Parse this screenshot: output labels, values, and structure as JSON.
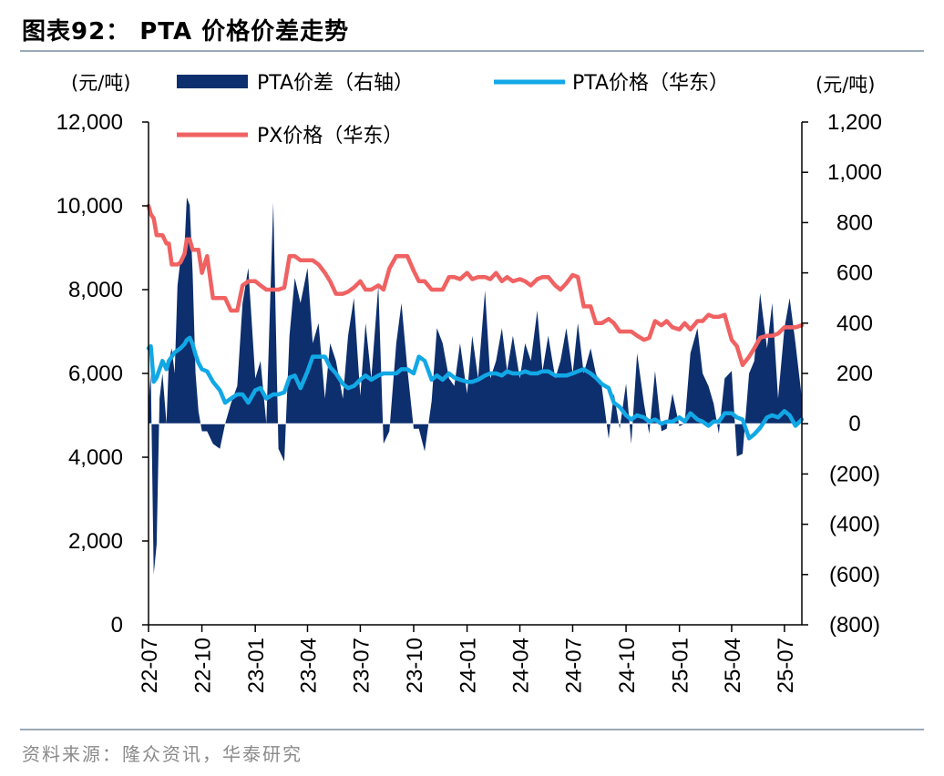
{
  "figure": {
    "title": "图表92： PTA 价格价差走势",
    "source": "资料来源：隆众资讯，华泰研究"
  },
  "chart_data": {
    "type": "line+area",
    "left_unit": "(元/吨)",
    "right_unit": "(元/吨)",
    "left_axis": {
      "min": 0,
      "max": 12000,
      "ticks": [
        "0",
        "2,000",
        "4,000",
        "6,000",
        "8,000",
        "10,000",
        "12,000"
      ]
    },
    "right_axis": {
      "min": -800,
      "max": 1200,
      "ticks": [
        "(800)",
        "(600)",
        "(400)",
        "(200)",
        "0",
        "200",
        "400",
        "600",
        "800",
        "1,000",
        "1,200"
      ]
    },
    "x_axis": {
      "start": "2022-07-01",
      "end": "2025-07-31",
      "ticks": [
        "22-07",
        "22-10",
        "23-01",
        "23-04",
        "23-07",
        "23-10",
        "24-01",
        "24-04",
        "24-07",
        "24-10",
        "25-01",
        "25-04",
        "25-07"
      ],
      "tick_dates": [
        "2022-07-01",
        "2022-10-01",
        "2023-01-01",
        "2023-04-01",
        "2023-07-01",
        "2023-10-01",
        "2024-01-01",
        "2024-04-01",
        "2024-07-01",
        "2024-10-01",
        "2025-01-01",
        "2025-04-01",
        "2025-07-01"
      ]
    },
    "legend": {
      "placement": "top"
    },
    "series": [
      {
        "name": "PTA价差（右轴）",
        "type": "area",
        "axis": "right",
        "color": "#0d2f6e",
        "dates": [
          "2022-07-01",
          "2022-07-05",
          "2022-07-10",
          "2022-07-15",
          "2022-07-20",
          "2022-07-25",
          "2022-08-01",
          "2022-08-05",
          "2022-08-10",
          "2022-08-15",
          "2022-08-20",
          "2022-08-25",
          "2022-09-01",
          "2022-09-05",
          "2022-09-10",
          "2022-09-15",
          "2022-09-20",
          "2022-09-25",
          "2022-10-01",
          "2022-10-10",
          "2022-10-20",
          "2022-11-01",
          "2022-11-10",
          "2022-11-20",
          "2022-12-01",
          "2022-12-10",
          "2022-12-20",
          "2023-01-01",
          "2023-01-10",
          "2023-01-20",
          "2023-02-01",
          "2023-02-10",
          "2023-02-20",
          "2023-03-01",
          "2023-03-10",
          "2023-03-20",
          "2023-04-01",
          "2023-04-10",
          "2023-04-20",
          "2023-05-01",
          "2023-05-10",
          "2023-05-20",
          "2023-06-01",
          "2023-06-10",
          "2023-06-20",
          "2023-07-01",
          "2023-07-10",
          "2023-07-20",
          "2023-08-01",
          "2023-08-10",
          "2023-08-20",
          "2023-09-01",
          "2023-09-10",
          "2023-09-20",
          "2023-10-01",
          "2023-10-10",
          "2023-10-20",
          "2023-11-01",
          "2023-11-10",
          "2023-11-20",
          "2023-12-01",
          "2023-12-10",
          "2023-12-20",
          "2024-01-01",
          "2024-01-10",
          "2024-01-20",
          "2024-02-01",
          "2024-02-10",
          "2024-02-20",
          "2024-03-01",
          "2024-03-10",
          "2024-03-20",
          "2024-04-01",
          "2024-04-10",
          "2024-04-20",
          "2024-05-01",
          "2024-05-10",
          "2024-05-20",
          "2024-06-01",
          "2024-06-10",
          "2024-06-20",
          "2024-07-01",
          "2024-07-10",
          "2024-07-20",
          "2024-08-01",
          "2024-08-10",
          "2024-08-20",
          "2024-09-01",
          "2024-09-10",
          "2024-09-20",
          "2024-10-01",
          "2024-10-10",
          "2024-10-20",
          "2024-11-01",
          "2024-11-10",
          "2024-11-20",
          "2024-12-01",
          "2024-12-10",
          "2024-12-20",
          "2025-01-01",
          "2025-01-10",
          "2025-01-20",
          "2025-02-01",
          "2025-02-10",
          "2025-02-20",
          "2025-03-01",
          "2025-03-10",
          "2025-03-20",
          "2025-04-01",
          "2025-04-10",
          "2025-04-20",
          "2025-05-01",
          "2025-05-10",
          "2025-05-20",
          "2025-06-01",
          "2025-06-10",
          "2025-06-20",
          "2025-07-01",
          "2025-07-10",
          "2025-07-20",
          "2025-07-31"
        ],
        "values": [
          80,
          200,
          -600,
          -480,
          100,
          200,
          0,
          250,
          300,
          200,
          550,
          650,
          700,
          900,
          870,
          600,
          200,
          50,
          -30,
          -30,
          -80,
          -100,
          0,
          80,
          150,
          480,
          620,
          180,
          250,
          0,
          880,
          -100,
          -150,
          350,
          580,
          480,
          620,
          320,
          400,
          100,
          320,
          250,
          100,
          350,
          500,
          110,
          400,
          180,
          550,
          -80,
          -30,
          320,
          480,
          220,
          -20,
          -20,
          -110,
          90,
          380,
          320,
          180,
          150,
          320,
          120,
          350,
          180,
          530,
          180,
          250,
          380,
          210,
          350,
          180,
          320,
          250,
          450,
          210,
          350,
          180,
          250,
          380,
          200,
          400,
          200,
          300,
          200,
          150,
          -60,
          120,
          -20,
          160,
          -80,
          280,
          80,
          -40,
          210,
          -30,
          -20,
          120,
          -10,
          0,
          280,
          380,
          200,
          150,
          80,
          -40,
          180,
          210,
          -130,
          -120,
          200,
          250,
          520,
          300,
          480,
          100,
          380,
          500,
          320,
          100
        ]
      },
      {
        "name": "PTA价格（华东）",
        "type": "line",
        "axis": "left",
        "color": "#12a8e6",
        "dates": [
          "2022-07-01",
          "2022-07-05",
          "2022-07-10",
          "2022-07-15",
          "2022-07-20",
          "2022-07-25",
          "2022-08-01",
          "2022-08-05",
          "2022-08-10",
          "2022-08-15",
          "2022-08-20",
          "2022-08-25",
          "2022-09-01",
          "2022-09-05",
          "2022-09-10",
          "2022-09-15",
          "2022-09-20",
          "2022-09-25",
          "2022-10-01",
          "2022-10-10",
          "2022-10-20",
          "2022-11-01",
          "2022-11-10",
          "2022-11-20",
          "2022-12-01",
          "2022-12-10",
          "2022-12-20",
          "2023-01-01",
          "2023-01-10",
          "2023-01-20",
          "2023-02-01",
          "2023-02-10",
          "2023-02-20",
          "2023-03-01",
          "2023-03-10",
          "2023-03-20",
          "2023-04-01",
          "2023-04-10",
          "2023-04-20",
          "2023-05-01",
          "2023-05-10",
          "2023-05-20",
          "2023-06-01",
          "2023-06-10",
          "2023-06-20",
          "2023-07-01",
          "2023-07-10",
          "2023-07-20",
          "2023-08-01",
          "2023-08-10",
          "2023-08-20",
          "2023-09-01",
          "2023-09-10",
          "2023-09-20",
          "2023-10-01",
          "2023-10-10",
          "2023-10-20",
          "2023-11-01",
          "2023-11-10",
          "2023-11-20",
          "2023-12-01",
          "2023-12-10",
          "2023-12-20",
          "2024-01-01",
          "2024-01-10",
          "2024-01-20",
          "2024-02-01",
          "2024-02-10",
          "2024-02-20",
          "2024-03-01",
          "2024-03-10",
          "2024-03-20",
          "2024-04-01",
          "2024-04-10",
          "2024-04-20",
          "2024-05-01",
          "2024-05-10",
          "2024-05-20",
          "2024-06-01",
          "2024-06-10",
          "2024-06-20",
          "2024-07-01",
          "2024-07-10",
          "2024-07-20",
          "2024-08-01",
          "2024-08-10",
          "2024-08-20",
          "2024-09-01",
          "2024-09-10",
          "2024-09-20",
          "2024-10-01",
          "2024-10-10",
          "2024-10-20",
          "2024-11-01",
          "2024-11-10",
          "2024-11-20",
          "2024-12-01",
          "2024-12-10",
          "2024-12-20",
          "2025-01-01",
          "2025-01-10",
          "2025-01-20",
          "2025-02-01",
          "2025-02-10",
          "2025-02-20",
          "2025-03-01",
          "2025-03-10",
          "2025-03-20",
          "2025-04-01",
          "2025-04-10",
          "2025-04-20",
          "2025-05-01",
          "2025-05-10",
          "2025-05-20",
          "2025-06-01",
          "2025-06-10",
          "2025-06-20",
          "2025-07-01",
          "2025-07-10",
          "2025-07-20",
          "2025-07-31"
        ],
        "values": [
          6600,
          6650,
          5800,
          5900,
          6100,
          6300,
          6100,
          6300,
          6400,
          6500,
          6550,
          6600,
          6700,
          6800,
          6850,
          6700,
          6450,
          6250,
          6100,
          6050,
          5800,
          5600,
          5300,
          5400,
          5500,
          5500,
          5300,
          5600,
          5650,
          5400,
          5500,
          5500,
          5550,
          5900,
          5950,
          5650,
          6050,
          6400,
          6400,
          6400,
          6150,
          6000,
          5750,
          5650,
          5700,
          5850,
          5950,
          5850,
          5950,
          6000,
          6000,
          6000,
          6100,
          6100,
          6000,
          6400,
          6300,
          5850,
          5950,
          5850,
          6000,
          5900,
          5850,
          5800,
          5800,
          5850,
          5950,
          6000,
          6000,
          5950,
          6050,
          6000,
          6000,
          6050,
          6000,
          6000,
          6050,
          6050,
          5950,
          5950,
          5950,
          6000,
          6050,
          6100,
          6000,
          5900,
          5750,
          5650,
          5300,
          5200,
          5000,
          4900,
          5000,
          4950,
          4850,
          4900,
          4800,
          4850,
          4850,
          4950,
          4850,
          5050,
          4900,
          4850,
          4750,
          4850,
          4850,
          5050,
          5050,
          4950,
          4900,
          4450,
          4550,
          4700,
          4950,
          5000,
          4950,
          5100,
          5000,
          4750,
          4900
        ]
      },
      {
        "name": "PX价格（华东）",
        "type": "line",
        "axis": "left",
        "color": "#f06262",
        "dates": [
          "2022-07-01",
          "2022-07-05",
          "2022-07-10",
          "2022-07-15",
          "2022-07-20",
          "2022-07-25",
          "2022-08-01",
          "2022-08-05",
          "2022-08-10",
          "2022-08-15",
          "2022-08-20",
          "2022-08-25",
          "2022-09-01",
          "2022-09-05",
          "2022-09-10",
          "2022-09-15",
          "2022-09-20",
          "2022-09-25",
          "2022-10-01",
          "2022-10-10",
          "2022-10-20",
          "2022-11-01",
          "2022-11-10",
          "2022-11-20",
          "2022-12-01",
          "2022-12-10",
          "2022-12-20",
          "2023-01-01",
          "2023-01-10",
          "2023-01-20",
          "2023-02-01",
          "2023-02-10",
          "2023-02-20",
          "2023-03-01",
          "2023-03-10",
          "2023-03-20",
          "2023-04-01",
          "2023-04-10",
          "2023-04-20",
          "2023-05-01",
          "2023-05-10",
          "2023-05-20",
          "2023-06-01",
          "2023-06-10",
          "2023-06-20",
          "2023-07-01",
          "2023-07-10",
          "2023-07-20",
          "2023-08-01",
          "2023-08-10",
          "2023-08-20",
          "2023-09-01",
          "2023-09-10",
          "2023-09-20",
          "2023-10-01",
          "2023-10-10",
          "2023-10-20",
          "2023-11-01",
          "2023-11-10",
          "2023-11-20",
          "2023-12-01",
          "2023-12-10",
          "2023-12-20",
          "2024-01-01",
          "2024-01-10",
          "2024-01-20",
          "2024-02-01",
          "2024-02-10",
          "2024-02-20",
          "2024-03-01",
          "2024-03-10",
          "2024-03-20",
          "2024-04-01",
          "2024-04-10",
          "2024-04-20",
          "2024-05-01",
          "2024-05-10",
          "2024-05-20",
          "2024-06-01",
          "2024-06-10",
          "2024-06-20",
          "2024-07-01",
          "2024-07-10",
          "2024-07-20",
          "2024-08-01",
          "2024-08-10",
          "2024-08-20",
          "2024-09-01",
          "2024-09-10",
          "2024-09-20",
          "2024-10-01",
          "2024-10-10",
          "2024-10-20",
          "2024-11-01",
          "2024-11-10",
          "2024-11-20",
          "2024-12-01",
          "2024-12-10",
          "2024-12-20",
          "2025-01-01",
          "2025-01-10",
          "2025-01-20",
          "2025-02-01",
          "2025-02-10",
          "2025-02-20",
          "2025-03-01",
          "2025-03-10",
          "2025-03-20",
          "2025-04-01",
          "2025-04-10",
          "2025-04-20",
          "2025-05-01",
          "2025-05-10",
          "2025-05-20",
          "2025-06-01",
          "2025-06-10",
          "2025-06-20",
          "2025-07-01",
          "2025-07-10",
          "2025-07-20",
          "2025-07-31"
        ],
        "values": [
          10000,
          9800,
          9700,
          9300,
          9300,
          9300,
          9100,
          9100,
          8600,
          8600,
          8600,
          8650,
          8850,
          9200,
          9200,
          8950,
          8950,
          8950,
          8400,
          8800,
          7800,
          7800,
          7800,
          7500,
          7500,
          8100,
          8200,
          8200,
          8100,
          8000,
          8000,
          8000,
          8050,
          8800,
          8800,
          8700,
          8700,
          8700,
          8600,
          8400,
          8200,
          7900,
          7900,
          7950,
          8050,
          8200,
          8000,
          8000,
          8100,
          8000,
          8500,
          8800,
          8800,
          8800,
          8450,
          8200,
          8200,
          8000,
          8000,
          8000,
          8300,
          8300,
          8250,
          8400,
          8250,
          8300,
          8300,
          8250,
          8400,
          8200,
          8300,
          8200,
          8250,
          8200,
          8100,
          8250,
          8300,
          8300,
          8100,
          8000,
          8150,
          8350,
          8300,
          7600,
          7600,
          7200,
          7200,
          7300,
          7200,
          7000,
          7000,
          7000,
          6900,
          6800,
          6850,
          7250,
          7150,
          7250,
          7100,
          7050,
          7200,
          7050,
          7250,
          7250,
          7400,
          7350,
          7350,
          7400,
          6800,
          6650,
          6200,
          6400,
          6600,
          6850,
          6900,
          6900,
          6950,
          7100,
          7100,
          7100,
          7150
        ]
      }
    ]
  }
}
